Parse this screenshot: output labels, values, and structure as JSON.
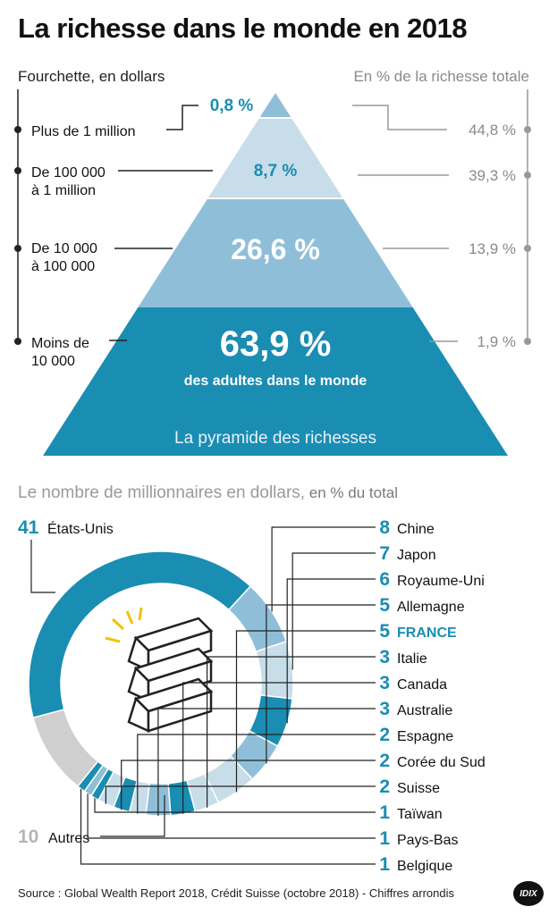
{
  "title": "La richesse dans le monde en 2018",
  "pyramid": {
    "left_header": "Fourchette, en dollars",
    "right_header": "En % de la richesse totale",
    "caption": "La pyramide des richesses",
    "main_subtitle": "des adultes dans le monde",
    "tiers": [
      {
        "range": [
          "Plus de 1 million"
        ],
        "adults": "0,8 %",
        "wealth": "44,8 %",
        "color": "#8fbfd8"
      },
      {
        "range": [
          "De 100 000",
          "à 1 million"
        ],
        "adults": "8,7 %",
        "wealth": "39,3 %",
        "color": "#c7dde9"
      },
      {
        "range": [
          "De 10 000",
          "à 100 000"
        ],
        "adults": "26,6 %",
        "wealth": "13,9 %",
        "color": "#8fbfd8"
      },
      {
        "range": [
          "Moins de",
          "10 000"
        ],
        "adults": "63,9 %",
        "wealth": "1,9 %",
        "color": "#1a8db3"
      }
    ]
  },
  "millionaires": {
    "title": "Le nombre de millionnaires en dollars,",
    "title_suffix": " en % du total",
    "colors": {
      "dark": "#1a8db3",
      "mid": "#8fbfd8",
      "light": "#c7dde9",
      "grey": "#cfcfcf",
      "accent": "#1a8db3"
    }
  },
  "chart_data": {
    "type": "pie",
    "style": "donut",
    "title": "Le nombre de millionnaires en dollars, en % du total",
    "unit": "%",
    "categories": [
      "États-Unis",
      "Chine",
      "Japon",
      "Royaume-Uni",
      "Allemagne",
      "FRANCE",
      "Italie",
      "Canada",
      "Australie",
      "Espagne",
      "Corée du Sud",
      "Suisse",
      "Taïwan",
      "Pays-Bas",
      "Belgique",
      "Autres"
    ],
    "values": [
      41,
      8,
      7,
      6,
      5,
      5,
      3,
      3,
      3,
      2,
      2,
      2,
      1,
      1,
      1,
      10
    ],
    "highlight": "FRANCE",
    "legend_position": "right"
  },
  "source": "Source : Global Wealth Report 2018, Crédit Suisse (octobre 2018) - Chiffres arrondis",
  "logo_text": "IDIX"
}
